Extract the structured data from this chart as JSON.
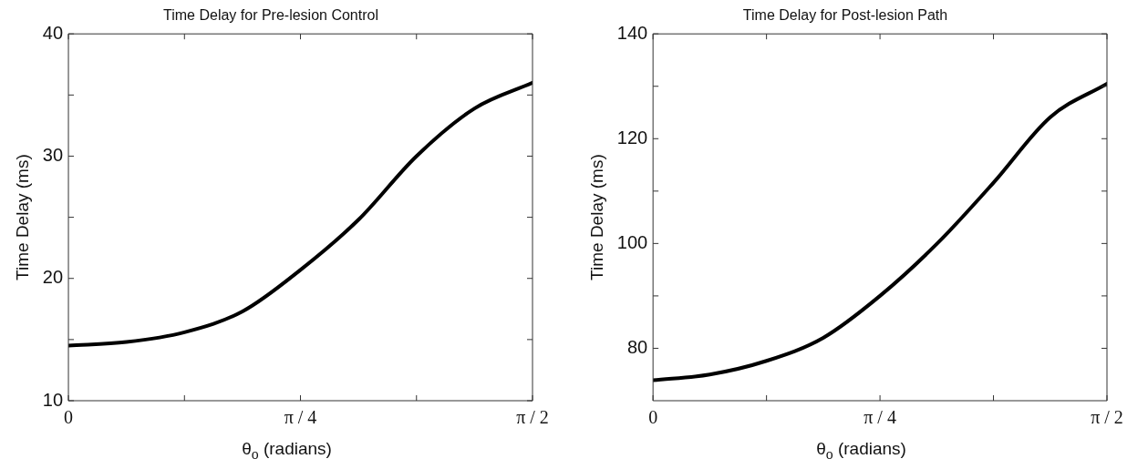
{
  "chart_data": [
    {
      "type": "line",
      "title": "Time Delay for Pre-lesion Control",
      "xlabel": "θ$_{o}$ (radians)",
      "ylabel": "Time Delay (ms)",
      "x": [
        0,
        0.19635,
        0.3927,
        0.58905,
        0.7854,
        0.98175,
        1.1781,
        1.37445,
        1.5708
      ],
      "series": [
        {
          "color": "#000000",
          "values": [
            14.5,
            14.8,
            15.6,
            17.3,
            20.7,
            24.8,
            30.0,
            33.9,
            36.0
          ]
        }
      ],
      "xlim": [
        0,
        1.5708
      ],
      "xticks": [
        {
          "value": 0,
          "label": "0"
        },
        {
          "value": 0.3927,
          "label": null
        },
        {
          "value": 0.7854,
          "label": "π / 4"
        },
        {
          "value": 1.1781,
          "label": null
        },
        {
          "value": 1.5708,
          "label": "π / 2"
        }
      ],
      "ylim": [
        10,
        40
      ],
      "yticks": [
        10,
        {
          "value": 15,
          "label": null
        },
        20,
        {
          "value": 25,
          "label": null
        },
        30,
        {
          "value": 35,
          "label": null
        },
        40
      ],
      "marker": "none",
      "line_style": "solid"
    },
    {
      "type": "line",
      "title": "Time Delay for Post-lesion Path",
      "xlabel": "θ$_{o}$ (radians)",
      "ylabel": "Time Delay (ms)",
      "x": [
        0,
        0.19635,
        0.3927,
        0.58905,
        0.7854,
        0.98175,
        1.1781,
        1.37445,
        1.5708
      ],
      "series": [
        {
          "color": "#000000",
          "values": [
            73.9,
            75.0,
            77.6,
            82.0,
            90.0,
            99.9,
            111.6,
            124.1,
            130.5
          ]
        }
      ],
      "xlim": [
        0,
        1.5708
      ],
      "xticks": [
        {
          "value": 0,
          "label": "0"
        },
        {
          "value": 0.3927,
          "label": null
        },
        {
          "value": 0.7854,
          "label": "π / 4"
        },
        {
          "value": 1.1781,
          "label": null
        },
        {
          "value": 1.5708,
          "label": "π / 2"
        }
      ],
      "ylim": [
        70,
        140
      ],
      "yticks": [
        80,
        {
          "value": 90,
          "label": null
        },
        100,
        {
          "value": 110,
          "label": null
        },
        120,
        {
          "value": 130,
          "label": null
        },
        140
      ],
      "marker": "none",
      "line_style": "solid"
    }
  ]
}
